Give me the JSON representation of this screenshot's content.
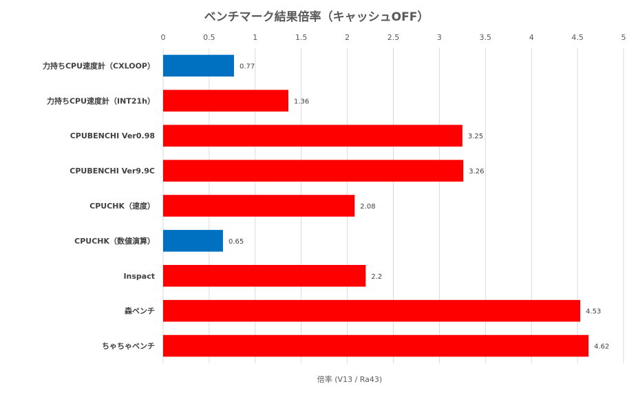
{
  "chart_data": {
    "type": "bar",
    "orientation": "horizontal",
    "title": "ベンチマーク結果倍率（キャッシュOFF）",
    "xlabel": "倍率 (V13 / Ra43)",
    "ylabel": "",
    "xlim": [
      0,
      5
    ],
    "x_ticks": [
      "0",
      "0.5",
      "1",
      "1.5",
      "2",
      "2.5",
      "3",
      "3.5",
      "4",
      "4.5",
      "5"
    ],
    "x_tick_values": [
      0,
      0.5,
      1,
      1.5,
      2,
      2.5,
      3,
      3.5,
      4,
      4.5,
      5
    ],
    "x_axis_position": "top",
    "grid": true,
    "categories": [
      "力持ちCPU速度計（CXLOOP）",
      "力持ちCPU速度計（INT21h）",
      "CPUBENCHI Ver0.98",
      "CPUBENCHI Ver9.9C",
      "CPUCHK（速度）",
      "CPUCHK（数値演算）",
      "Inspact",
      "森ベンチ",
      "ちゃちゃベンチ"
    ],
    "values": [
      0.77,
      1.36,
      3.25,
      3.26,
      2.08,
      0.65,
      2.2,
      4.53,
      4.62
    ],
    "value_labels": [
      "0.77",
      "1.36",
      "3.25",
      "3.26",
      "2.08",
      "0.65",
      "2.2",
      "4.53",
      "4.62"
    ],
    "bar_colors": [
      "#0070c0",
      "#ff0000",
      "#ff0000",
      "#ff0000",
      "#ff0000",
      "#0070c0",
      "#ff0000",
      "#ff0000",
      "#ff0000"
    ]
  }
}
